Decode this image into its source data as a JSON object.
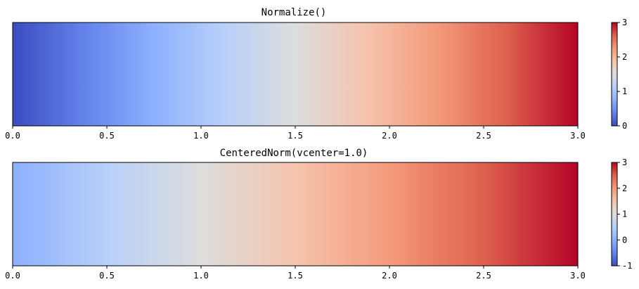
{
  "chart_data": [
    {
      "type": "heatmap",
      "title": "Normalize()",
      "x_ticks": [
        "0.0",
        "0.5",
        "1.0",
        "1.5",
        "2.0",
        "2.5",
        "3.0"
      ],
      "x_tick_values": [
        0.0,
        0.5,
        1.0,
        1.5,
        2.0,
        2.5,
        3.0
      ],
      "xlim": [
        0.0,
        3.0
      ],
      "data_range": [
        0.0,
        3.0
      ],
      "colormap": "coolwarm",
      "norm": {
        "vmin": 0,
        "vmax": 3
      },
      "colorbar": {
        "ticks": [
          "0",
          "1",
          "2",
          "3"
        ],
        "tick_values": [
          0,
          1,
          2,
          3
        ],
        "range": [
          0,
          3
        ]
      }
    },
    {
      "type": "heatmap",
      "title": "CenteredNorm(vcenter=1.0)",
      "x_ticks": [
        "0.0",
        "0.5",
        "1.0",
        "1.5",
        "2.0",
        "2.5",
        "3.0"
      ],
      "x_tick_values": [
        0.0,
        0.5,
        1.0,
        1.5,
        2.0,
        2.5,
        3.0
      ],
      "xlim": [
        0.0,
        3.0
      ],
      "data_range": [
        0.0,
        3.0
      ],
      "colormap": "coolwarm",
      "norm": {
        "vmin": -1,
        "vmax": 3,
        "vcenter": 1.0
      },
      "colorbar": {
        "ticks": [
          "-1",
          "0",
          "1",
          "2",
          "3"
        ],
        "tick_values": [
          -1,
          0,
          1,
          2,
          3
        ],
        "range": [
          -1,
          3
        ]
      }
    }
  ],
  "colors": {
    "coolwarm_low": "#3b4cc0",
    "coolwarm_mid": "#dddddd",
    "coolwarm_high": "#b40426"
  }
}
